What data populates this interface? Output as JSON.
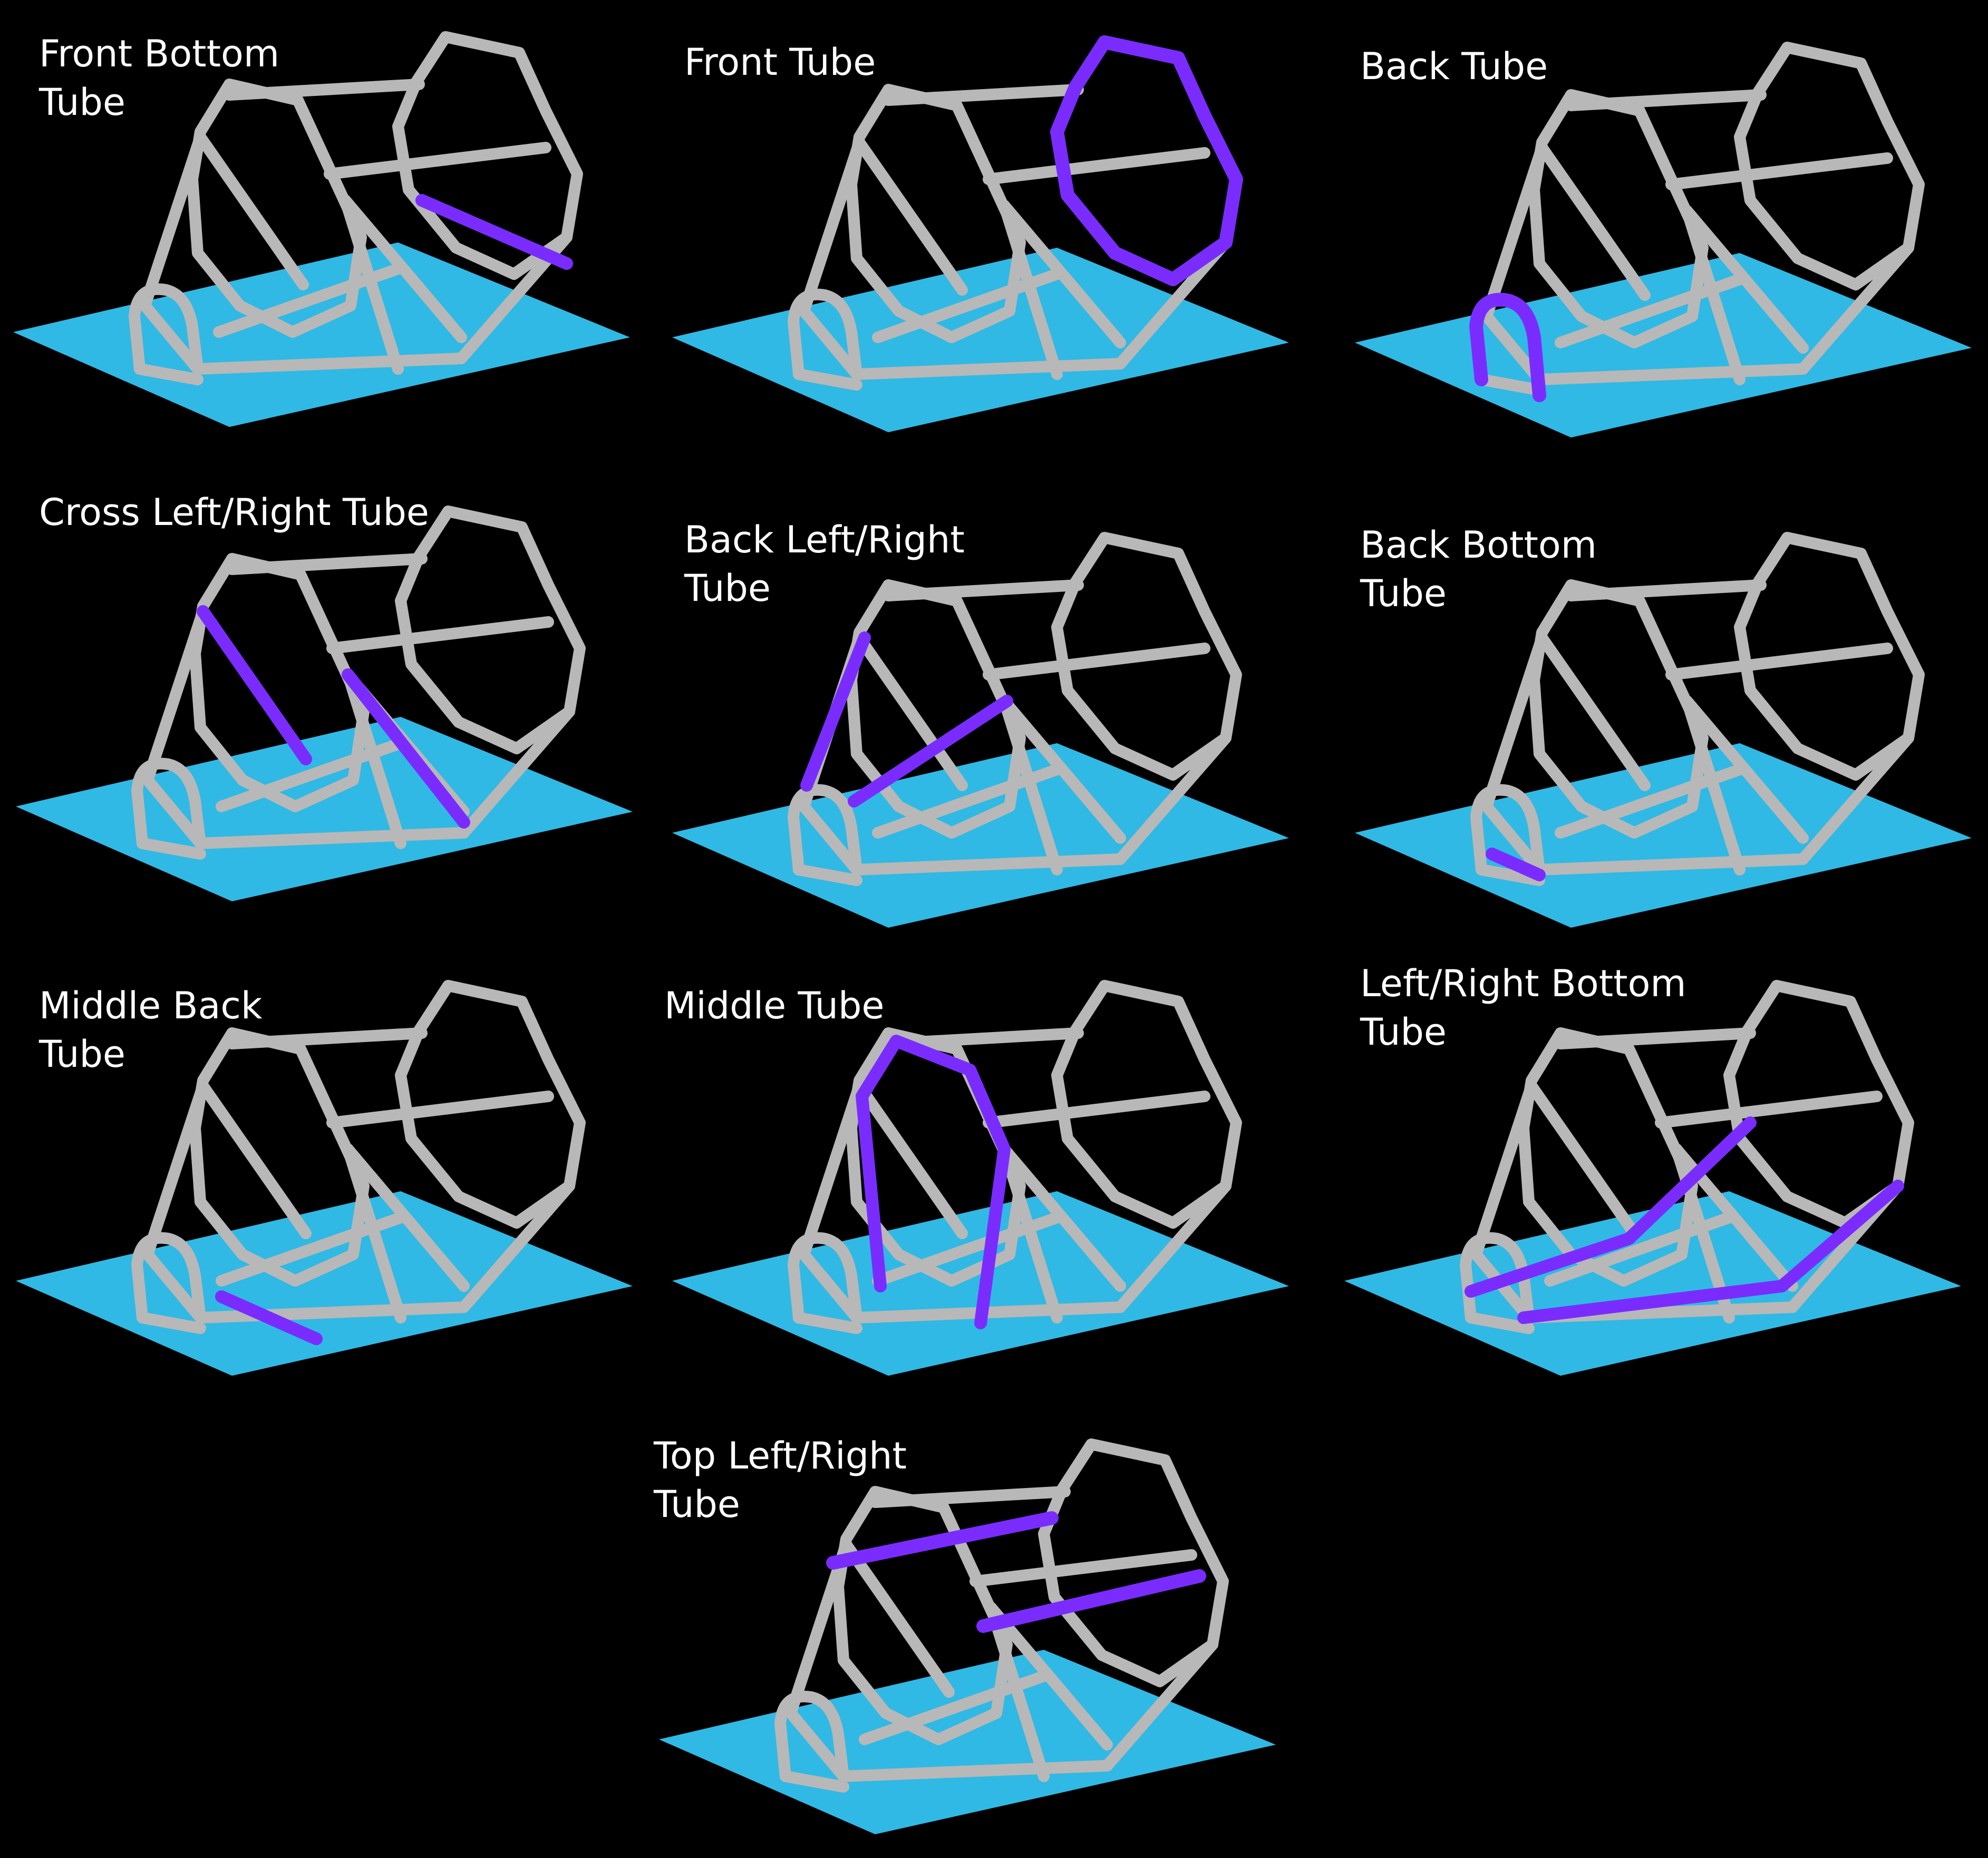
{
  "panels": [
    {
      "id": "front-bottom-tube",
      "label": "Front Bottom\nTube"
    },
    {
      "id": "front-tube",
      "label": "Front Tube"
    },
    {
      "id": "back-tube",
      "label": "Back Tube"
    },
    {
      "id": "cross-left-right-tube",
      "label": "Cross Left/Right Tube"
    },
    {
      "id": "back-left-right-tube",
      "label": "Back Left/Right\nTube"
    },
    {
      "id": "back-bottom-tube",
      "label": "Back Bottom\nTube"
    },
    {
      "id": "middle-back-tube",
      "label": "Middle Back\nTube"
    },
    {
      "id": "middle-tube",
      "label": "Middle Tube"
    },
    {
      "id": "left-right-bottom-tube",
      "label": "Left/Right Bottom\nTube"
    },
    {
      "id": "top-left-right-tube",
      "label": "Top Left/Right\nTube"
    }
  ],
  "colors": {
    "background": "#000000",
    "tube": "#b8b8b8",
    "highlight": "#7a2cff",
    "ground_plane": "#33c3f0",
    "label": "#ffffff"
  }
}
